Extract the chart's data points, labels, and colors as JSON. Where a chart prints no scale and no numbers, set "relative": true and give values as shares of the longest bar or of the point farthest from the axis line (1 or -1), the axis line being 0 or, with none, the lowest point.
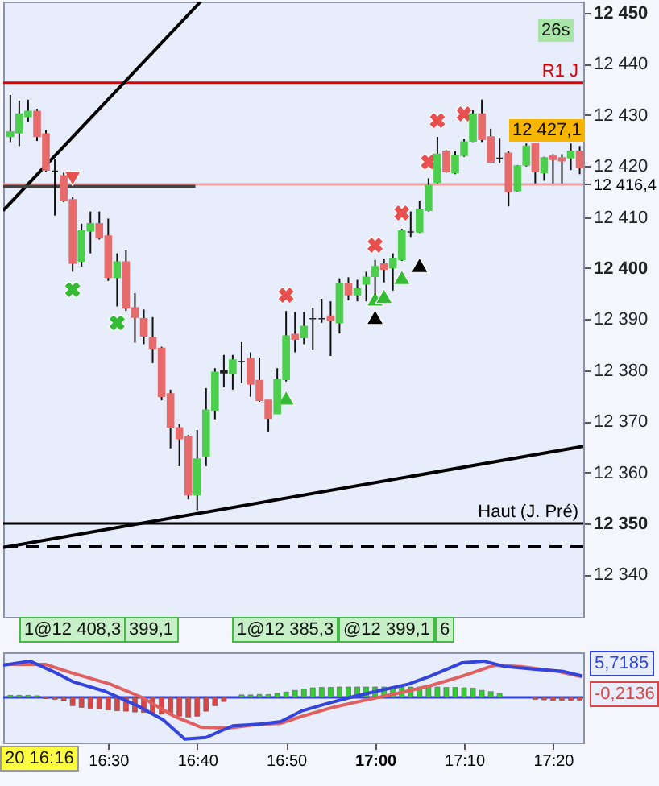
{
  "chart_data": [
    {
      "type": "candlestick",
      "xlim": [
        16.3033,
        17.39
      ],
      "ylim": [
        12331.7,
        12452.2
      ],
      "yticks": [
        {
          "value": 12340,
          "label": "12 340"
        },
        {
          "value": 12350,
          "label": "12 350"
        },
        {
          "value": 12360,
          "label": "12 360"
        },
        {
          "value": 12370,
          "label": "12 370"
        },
        {
          "value": 12380,
          "label": "12 380"
        },
        {
          "value": 12390,
          "label": "12 390"
        },
        {
          "value": 12400,
          "label": "12 400"
        },
        {
          "value": 12410,
          "label": "12 410"
        },
        {
          "value": 12416.4,
          "label": "12 416,4"
        },
        {
          "value": 12420,
          "label": "12 420"
        },
        {
          "value": 12430,
          "label": "12 430"
        },
        {
          "value": 12440,
          "label": "12 440"
        },
        {
          "value": 12450,
          "label": "12 450"
        }
      ],
      "tick_labels": "y",
      "x": [
        16.3167,
        16.3333,
        16.35,
        16.3667,
        16.3833,
        16.4,
        16.4167,
        16.4333,
        16.45,
        16.4667,
        16.4833,
        16.5,
        16.5167,
        16.5333,
        16.55,
        16.5667,
        16.5833,
        16.6,
        16.6167,
        16.6333,
        16.65,
        16.6667,
        16.6833,
        16.7,
        16.7167,
        16.7333,
        16.75,
        16.7667,
        16.7833,
        16.8,
        16.8167,
        16.8333,
        16.85,
        16.8667,
        16.8833,
        16.9,
        16.9167,
        16.9333,
        16.95,
        16.9667,
        16.9833,
        17.0,
        17.0167,
        17.0333,
        17.05,
        17.0667,
        17.0833,
        17.1,
        17.1167,
        17.1333,
        17.15,
        17.1667,
        17.1833,
        17.2,
        17.2167,
        17.2333,
        17.25,
        17.2667,
        17.2833,
        17.3,
        17.3167,
        17.3333,
        17.35,
        17.3667,
        17.3833
      ],
      "ohlc": [
        [
          12425.8,
          12433.9,
          12424.7,
          12426.7
        ],
        [
          12426.5,
          12432.8,
          12423.9,
          12430.2
        ],
        [
          12429.7,
          12433.0,
          12428.6,
          12430.7
        ],
        [
          12430.7,
          12431.2,
          12424.9,
          12425.8
        ],
        [
          12426.3,
          12427.0,
          12418.9,
          12419.2
        ],
        [
          12419.0,
          12421.3,
          12410.3,
          12419.0
        ],
        [
          12418.1,
          12418.7,
          12412.9,
          12413.2
        ],
        [
          12413.4,
          12413.9,
          12399.3,
          12401.0
        ],
        [
          12401.4,
          12408.7,
          12400.3,
          12407.3
        ],
        [
          12407.3,
          12411.1,
          12402.9,
          12408.7
        ],
        [
          12408.7,
          12411.1,
          12405.6,
          12405.9
        ],
        [
          12406.3,
          12409.7,
          12397.5,
          12398.2
        ],
        [
          12398.2,
          12402.9,
          12392.5,
          12401.2
        ],
        [
          12401.2,
          12403.5,
          12391.6,
          12392.2
        ],
        [
          12392.2,
          12395.1,
          12385.4,
          12390.4
        ],
        [
          12390.1,
          12391.9,
          12385.1,
          12386.7
        ],
        [
          12386.4,
          12390.4,
          12381.4,
          12384.3
        ],
        [
          12384.3,
          12384.6,
          12374.1,
          12374.9
        ],
        [
          12375.4,
          12376.2,
          12364.7,
          12368.9
        ],
        [
          12368.7,
          12369.4,
          12361.2,
          12366.6
        ],
        [
          12367.0,
          12367.3,
          12354.7,
          12355.6
        ],
        [
          12355.6,
          12368.3,
          12352.6,
          12362.6
        ],
        [
          12363.1,
          12376.5,
          12361.2,
          12372.2
        ],
        [
          12372.2,
          12380.4,
          12370.4,
          12379.6
        ],
        [
          12379.5,
          12383.0,
          12376.7,
          12379.9
        ],
        [
          12379.4,
          12383.0,
          12376.2,
          12382.0
        ],
        [
          12381.7,
          12385.5,
          12377.5,
          12381.7
        ],
        [
          12382.3,
          12383.5,
          12374.8,
          12377.3
        ],
        [
          12378.0,
          12382.5,
          12373.8,
          12374.1
        ],
        [
          12374.1,
          12374.1,
          12368.0,
          12370.6
        ],
        [
          12371.5,
          12380.4,
          12371.5,
          12378.2
        ],
        [
          12378.2,
          12391.6,
          12377.8,
          12386.7
        ],
        [
          12387.0,
          12391.4,
          12383.5,
          12386.1
        ],
        [
          12386.4,
          12391.4,
          12385.1,
          12388.6
        ],
        [
          12390.1,
          12392.2,
          12383.9,
          12390.1
        ],
        [
          12390.1,
          12394.0,
          12389.3,
          12390.1
        ],
        [
          12390.6,
          12393.5,
          12382.8,
          12389.8
        ],
        [
          12389.3,
          12398.0,
          12387.2,
          12397.0
        ],
        [
          12397.0,
          12398.2,
          12393.7,
          12394.8
        ],
        [
          12394.8,
          12397.7,
          12393.5,
          12396.1
        ],
        [
          12396.9,
          12399.3,
          12393.5,
          12398.2
        ],
        [
          12398.4,
          12401.6,
          12394.8,
          12400.3
        ],
        [
          12400.8,
          12401.9,
          12397.2,
          12399.8
        ],
        [
          12400.1,
          12402.9,
          12395.6,
          12401.9
        ],
        [
          12401.7,
          12407.7,
          12401.4,
          12407.3
        ],
        [
          12407.1,
          12411.1,
          12406.1,
          12407.1
        ],
        [
          12407.1,
          12413.2,
          12406.9,
          12411.5
        ],
        [
          12411.3,
          12417.6,
          12411.1,
          12416.2
        ],
        [
          12416.8,
          12425.7,
          12416.6,
          12422.3
        ],
        [
          12422.9,
          12423.1,
          12418.7,
          12418.9
        ],
        [
          12418.7,
          12422.9,
          12418.4,
          12422.1
        ],
        [
          12422.1,
          12425.3,
          12421.8,
          12424.7
        ],
        [
          12424.9,
          12430.9,
          12424.7,
          12430.2
        ],
        [
          12430.2,
          12433.0,
          12424.7,
          12425.2
        ],
        [
          12425.7,
          12427.3,
          12420.5,
          12420.8
        ],
        [
          12421.5,
          12425.5,
          12420.5,
          12421.5
        ],
        [
          12422.5,
          12422.9,
          12412.1,
          12415.0
        ],
        [
          12415.2,
          12420.2,
          12415.0,
          12420.0
        ],
        [
          12420.2,
          12424.4,
          12419.9,
          12423.9
        ],
        [
          12424.4,
          12424.4,
          12416.6,
          12418.9
        ],
        [
          12418.7,
          12421.8,
          12417.1,
          12421.6
        ],
        [
          12422.0,
          12422.3,
          12416.6,
          12421.3
        ],
        [
          12421.6,
          12422.3,
          12416.6,
          12421.0
        ],
        [
          12421.6,
          12424.4,
          12419.2,
          12422.9
        ],
        [
          12422.9,
          12423.9,
          12418.4,
          12419.7
        ]
      ],
      "colors": [
        "#4ccf4c",
        "#4ccf4c",
        "#4ccf4c",
        "#e86b6b",
        "#e86b6b",
        "#222222",
        "#e86b6b",
        "#e86b6b",
        "#4ccf4c",
        "#4ccf4c",
        "#e86b6b",
        "#e86b6b",
        "#4ccf4c",
        "#e86b6b",
        "#e86b6b",
        "#e86b6b",
        "#e86b6b",
        "#e86b6b",
        "#e86b6b",
        "#e86b6b",
        "#e86b6b",
        "#4ccf4c",
        "#4ccf4c",
        "#4ccf4c",
        "#222222",
        "#4ccf4c",
        "#222222",
        "#e86b6b",
        "#e86b6b",
        "#e86b6b",
        "#4ccf4c",
        "#4ccf4c",
        "#e86b6b",
        "#4ccf4c",
        "#222222",
        "#222222",
        "#e86b6b",
        "#4ccf4c",
        "#e86b6b",
        "#4ccf4c",
        "#4ccf4c",
        "#4ccf4c",
        "#e86b6b",
        "#4ccf4c",
        "#4ccf4c",
        "#222222",
        "#4ccf4c",
        "#4ccf4c",
        "#4ccf4c",
        "#e86b6b",
        "#4ccf4c",
        "#4ccf4c",
        "#4ccf4c",
        "#e86b6b",
        "#e86b6b",
        "#222222",
        "#e86b6b",
        "#4ccf4c",
        "#4ccf4c",
        "#e86b6b",
        "#4ccf4c",
        "#e86b6b",
        "#e86b6b",
        "#4ccf4c",
        "#e86b6b"
      ],
      "series": [
        {
          "type": "line",
          "color": "#000000",
          "x": [
            16.3033,
            16.6733
          ],
          "values": [
            12411.3,
            12452.2
          ]
        },
        {
          "type": "line",
          "color": "#000000",
          "x": [
            16.3033,
            17.39
          ],
          "values": [
            12345.3,
            12365.1
          ]
        },
        {
          "type": "line",
          "color": "#444444",
          "x": [
            16.3033,
            16.6633
          ],
          "values": [
            12416.0,
            12416.0
          ]
        },
        {
          "type": "scatter",
          "marker": "cross",
          "color": "#e85050",
          "x": [
            16.8333,
            17.0,
            17.05,
            17.1,
            17.1167,
            17.1667
          ],
          "values": [
            12394.7,
            12404.5,
            12410.8,
            12420.8,
            12428.9,
            12430.2
          ]
        },
        {
          "type": "scatter",
          "marker": "cross",
          "color": "#33bb33",
          "x": [
            16.4333,
            16.5167
          ],
          "values": [
            12395.8,
            12389.3
          ]
        },
        {
          "type": "scatter",
          "marker": "triangle",
          "color": "#33bb33",
          "x": [
            16.8333,
            17.0,
            17.0167,
            17.05
          ],
          "values": [
            12374.6,
            12394.0,
            12394.5,
            12398.2
          ]
        },
        {
          "type": "scatter",
          "marker": "triangle",
          "color": "#000000",
          "x": [
            17.0,
            17.0833
          ],
          "values": [
            12390.4,
            12400.6
          ]
        },
        {
          "type": "scatter",
          "marker": "triangle-down",
          "color": "#e85050",
          "x": [
            16.4333
          ],
          "values": [
            12417.6
          ]
        }
      ],
      "ref_lines": [
        {
          "axis": "y",
          "value": 12436.3,
          "label": "R1 J",
          "color": "#e00000"
        },
        {
          "axis": "y",
          "value": 12416.4,
          "color": "#f0a0a0"
        },
        {
          "axis": "y",
          "value": 12350,
          "label": "Haut (J. Pré)",
          "color": "#000000"
        },
        {
          "axis": "y",
          "value": 12345.5,
          "color": "#000000",
          "line_style": "dashed"
        }
      ],
      "annotations": [
        "12 427,1",
        "26s",
        "1@12 408,3",
        "399,1",
        "1@12 385,3",
        "@12 399,1",
        "6",
        "20 16:16"
      ]
    },
    {
      "type": "line",
      "relative": true,
      "xlim": [
        16.3033,
        17.39
      ],
      "xticks": [
        {
          "value": 16.5,
          "label": "16:30"
        },
        {
          "value": 16.6667,
          "label": "16:40"
        },
        {
          "value": 16.8333,
          "label": "16:50"
        },
        {
          "value": 17,
          "label": "17:00"
        },
        {
          "value": 17.1667,
          "label": "17:10"
        },
        {
          "value": 17.3333,
          "label": "17:20"
        }
      ],
      "tick_labels": "x",
      "x": [
        16.3167,
        16.3333,
        16.35,
        16.3667,
        16.3833,
        16.4,
        16.4167,
        16.4333,
        16.45,
        16.4667,
        16.4833,
        16.5,
        16.5167,
        16.5333,
        16.55,
        16.5667,
        16.5833,
        16.6,
        16.6167,
        16.6333,
        16.65,
        16.6667,
        16.6833,
        16.7,
        16.7167,
        16.7333,
        16.75,
        16.7667,
        16.7833,
        16.8,
        16.8167,
        16.8333,
        16.85,
        16.8667,
        16.8833,
        16.9,
        16.9167,
        16.9333,
        16.95,
        16.9667,
        16.9833,
        17.0,
        17.0167,
        17.0333,
        17.05,
        17.0667,
        17.0833,
        17.1,
        17.1167,
        17.1333,
        17.15,
        17.1667,
        17.1833,
        17.2,
        17.2167,
        17.2333,
        17.25,
        17.2667,
        17.2833,
        17.3,
        17.3167,
        17.3333,
        17.35,
        17.3667,
        17.3833
      ],
      "series": [
        {
          "type": "bar",
          "color": "#33cc33",
          "values": [
            0.05,
            0.05,
            0.05,
            0.04,
            null,
            null,
            null,
            null,
            null,
            null,
            null,
            null,
            null,
            null,
            null,
            null,
            null,
            null,
            null,
            null,
            null,
            null,
            null,
            null,
            null,
            null,
            0.06,
            0.06,
            0.07,
            0.07,
            0.1,
            0.13,
            0.17,
            0.2,
            0.23,
            0.24,
            0.24,
            0.25,
            0.25,
            0.25,
            0.25,
            0.25,
            0.25,
            0.25,
            0.25,
            0.25,
            0.25,
            0.25,
            0.25,
            0.24,
            0.24,
            0.23,
            0.22,
            0.17,
            0.14,
            0.09,
            null,
            null,
            null,
            null,
            null,
            null,
            null,
            null,
            null
          ]
        },
        {
          "type": "bar",
          "color": "#dd4444",
          "values": [
            null,
            null,
            null,
            null,
            -0.03,
            -0.05,
            -0.08,
            -0.2,
            -0.24,
            -0.26,
            -0.28,
            -0.3,
            -0.32,
            -0.33,
            -0.35,
            -0.36,
            -0.38,
            -0.4,
            -0.42,
            -0.45,
            -0.47,
            -0.45,
            -0.33,
            -0.2,
            -0.1,
            null,
            null,
            null,
            null,
            null,
            null,
            null,
            null,
            null,
            null,
            null,
            null,
            null,
            null,
            null,
            null,
            null,
            null,
            null,
            null,
            null,
            null,
            null,
            null,
            null,
            null,
            null,
            null,
            null,
            null,
            null,
            null,
            null,
            null,
            -0.05,
            -0.06,
            -0.07,
            -0.07,
            -0.07,
            -0.07
          ]
        },
        {
          "type": "line",
          "color": "#e06060",
          "x": [
            16.3033,
            16.3833,
            16.4333,
            16.5033,
            16.5633,
            16.6233,
            16.6733,
            16.7233,
            16.7833,
            16.8233,
            16.8633,
            16.9233,
            16.9833,
            17.0433,
            17.1033,
            17.1633,
            17.2233,
            17.2733,
            17.3433,
            17.3883
          ],
          "values": [
            0.79,
            0.79,
            0.58,
            0.32,
            0,
            -0.45,
            -0.71,
            -0.74,
            -0.64,
            -0.62,
            -0.45,
            -0.23,
            -0.06,
            0.1,
            0.28,
            0.51,
            0.77,
            0.74,
            0.62,
            0.49
          ]
        },
        {
          "type": "line",
          "color": "#3344dd",
          "x": [
            16.3033,
            16.3533,
            16.4033,
            16.4333,
            16.4933,
            16.5533,
            16.6033,
            16.6433,
            16.6833,
            16.7333,
            16.7833,
            16.8233,
            16.8633,
            16.9033,
            16.9533,
            17.0033,
            17.0633,
            17.1033,
            17.1633,
            17.2033,
            17.2433,
            17.3033,
            17.3533,
            17.3883
          ],
          "values": [
            0.77,
            0.87,
            0.58,
            0.38,
            0.15,
            -0.19,
            -0.54,
            -1,
            -0.96,
            -0.68,
            -0.64,
            -0.58,
            -0.32,
            -0.17,
            0,
            0.15,
            0.32,
            0.51,
            0.83,
            0.87,
            0.74,
            0.67,
            0.62,
            0.51
          ]
        }
      ],
      "ref_lines": [
        {
          "axis": "y",
          "value": 0,
          "color": "#3344dd"
        }
      ],
      "annotations": [
        "5,7185",
        "-0,2136"
      ]
    }
  ]
}
